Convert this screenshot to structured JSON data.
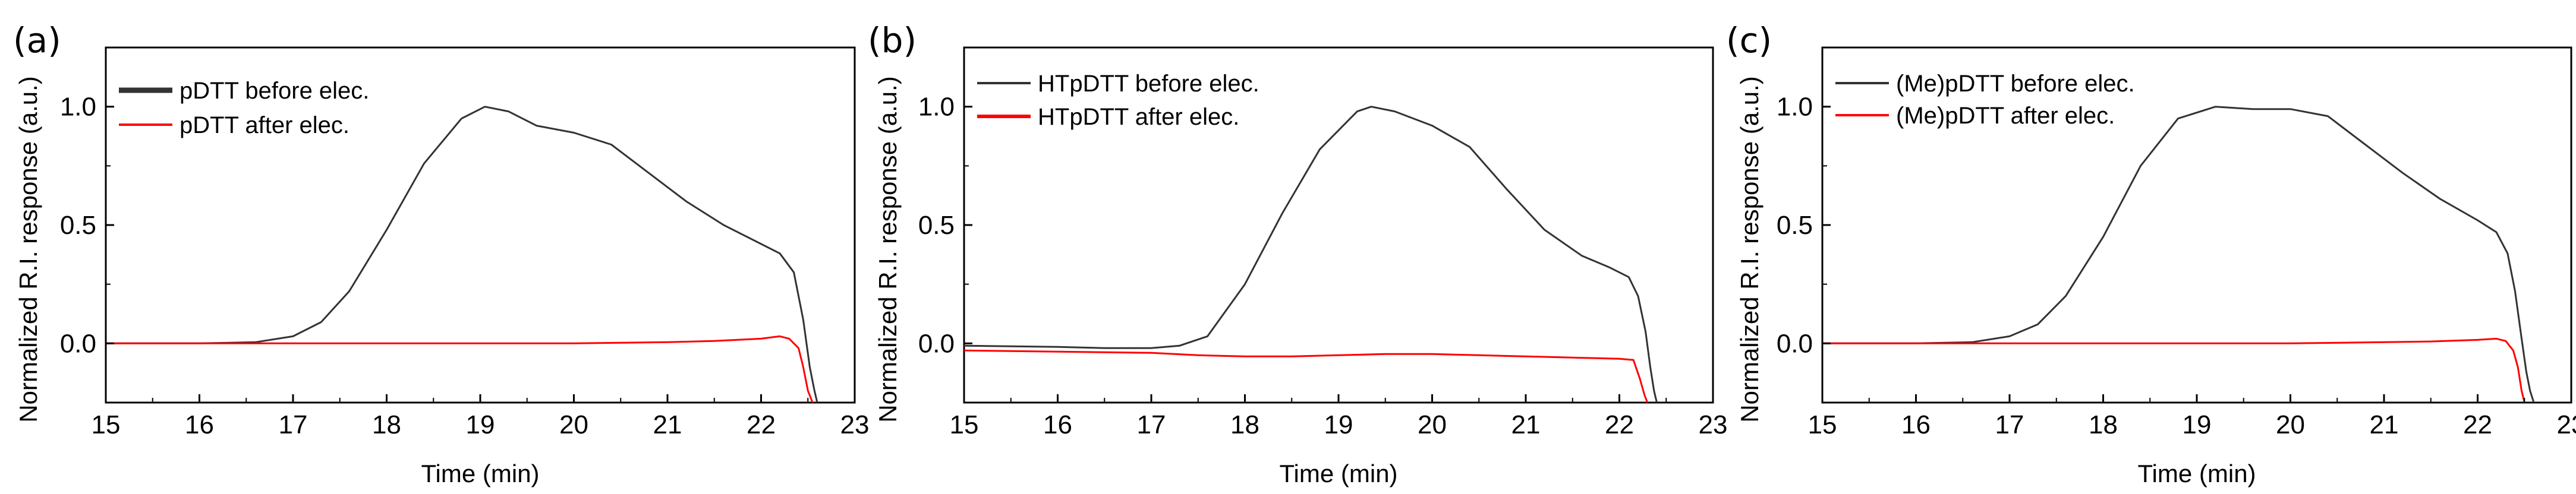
{
  "chart_data": [
    {
      "type": "line",
      "panel_label": "(a)",
      "xlabel": "Time (min)",
      "ylabel": "Normalized R.I. response (a.u.)",
      "xlim": [
        15,
        23
      ],
      "ylim": [
        -0.25,
        1.25
      ],
      "xticks": [
        "15",
        "16",
        "17",
        "18",
        "19",
        "20",
        "21",
        "22",
        "23"
      ],
      "yticks": [
        "0.0",
        "0.5",
        "1.0"
      ],
      "legend_position": "top-left",
      "series": [
        {
          "name": "pDTT before elec.",
          "color": "#333333",
          "x": [
            15,
            16,
            16.6,
            17,
            17.3,
            17.6,
            18,
            18.4,
            18.8,
            19.05,
            19.3,
            19.6,
            20,
            20.4,
            20.8,
            21.2,
            21.6,
            22,
            22.2,
            22.35,
            22.45,
            22.52,
            22.57,
            22.6
          ],
          "y": [
            0,
            0,
            0.005,
            0.03,
            0.09,
            0.22,
            0.48,
            0.76,
            0.95,
            1.0,
            0.98,
            0.92,
            0.89,
            0.84,
            0.72,
            0.6,
            0.5,
            0.42,
            0.38,
            0.3,
            0.1,
            -0.1,
            -0.2,
            -0.25
          ]
        },
        {
          "name": "pDTT after elec.",
          "color": "#ff0000",
          "x": [
            15,
            16,
            17,
            18,
            19,
            20,
            21,
            21.5,
            22,
            22.2,
            22.3,
            22.4,
            22.45,
            22.5,
            22.55
          ],
          "y": [
            0,
            0,
            0,
            0,
            0,
            0,
            0.005,
            0.01,
            0.02,
            0.03,
            0.02,
            -0.02,
            -0.1,
            -0.2,
            -0.25
          ]
        }
      ]
    },
    {
      "type": "line",
      "panel_label": "(b)",
      "xlabel": "Time (min)",
      "ylabel": "Normalized R.I. response (a.u.)",
      "xlim": [
        15,
        23
      ],
      "ylim": [
        -0.25,
        1.25
      ],
      "xticks": [
        "15",
        "16",
        "17",
        "18",
        "19",
        "20",
        "21",
        "22",
        "23"
      ],
      "yticks": [
        "0.0",
        "0.5",
        "1.0"
      ],
      "legend_position": "top-left",
      "series": [
        {
          "name": "HTpDTT before elec.",
          "color": "#333333",
          "x": [
            15,
            16,
            16.5,
            17,
            17.3,
            17.6,
            18,
            18.4,
            18.8,
            19.2,
            19.35,
            19.6,
            20,
            20.4,
            20.8,
            21.2,
            21.6,
            21.9,
            22.1,
            22.2,
            22.28,
            22.33,
            22.37,
            22.4
          ],
          "y": [
            -0.01,
            -0.015,
            -0.02,
            -0.02,
            -0.01,
            0.03,
            0.25,
            0.55,
            0.82,
            0.98,
            1.0,
            0.98,
            0.92,
            0.83,
            0.65,
            0.48,
            0.37,
            0.32,
            0.28,
            0.2,
            0.05,
            -0.1,
            -0.2,
            -0.25
          ]
        },
        {
          "name": "HTpDTT after elec.",
          "color": "#ff0000",
          "x": [
            15,
            16,
            17,
            17.5,
            18,
            18.5,
            19,
            19.5,
            20,
            20.5,
            21,
            21.5,
            22,
            22.15,
            22.22,
            22.27,
            22.3
          ],
          "y": [
            -0.03,
            -0.035,
            -0.04,
            -0.05,
            -0.055,
            -0.055,
            -0.05,
            -0.045,
            -0.045,
            -0.05,
            -0.055,
            -0.06,
            -0.065,
            -0.07,
            -0.15,
            -0.22,
            -0.25
          ]
        }
      ]
    },
    {
      "type": "line",
      "panel_label": "(c)",
      "xlabel": "Time (min)",
      "ylabel": "Normalized R.I. response (a.u.)",
      "xlim": [
        15,
        23
      ],
      "ylim": [
        -0.25,
        1.25
      ],
      "xticks": [
        "15",
        "16",
        "17",
        "18",
        "19",
        "20",
        "21",
        "22",
        "23"
      ],
      "yticks": [
        "0.0",
        "0.5",
        "1.0"
      ],
      "legend_position": "top-left",
      "series": [
        {
          "name": "(Me)pDTT before elec.",
          "color": "#333333",
          "x": [
            15,
            16,
            16.6,
            17,
            17.3,
            17.6,
            18,
            18.4,
            18.8,
            19.2,
            19.6,
            20,
            20.4,
            20.8,
            21.2,
            21.6,
            22,
            22.2,
            22.32,
            22.4,
            22.47,
            22.52,
            22.56,
            22.6
          ],
          "y": [
            0,
            0,
            0.005,
            0.03,
            0.08,
            0.2,
            0.45,
            0.75,
            0.95,
            1.0,
            0.99,
            0.99,
            0.96,
            0.84,
            0.72,
            0.61,
            0.52,
            0.47,
            0.38,
            0.22,
            0.02,
            -0.12,
            -0.2,
            -0.25
          ]
        },
        {
          "name": "(Me)pDTT after elec.",
          "color": "#ff0000",
          "x": [
            15,
            16,
            17,
            18,
            19,
            20,
            21,
            21.5,
            22,
            22.2,
            22.3,
            22.38,
            22.43,
            22.47,
            22.5
          ],
          "y": [
            0,
            0,
            0,
            0,
            0,
            0,
            0.005,
            0.008,
            0.015,
            0.02,
            0.01,
            -0.03,
            -0.1,
            -0.2,
            -0.25
          ]
        }
      ]
    }
  ]
}
